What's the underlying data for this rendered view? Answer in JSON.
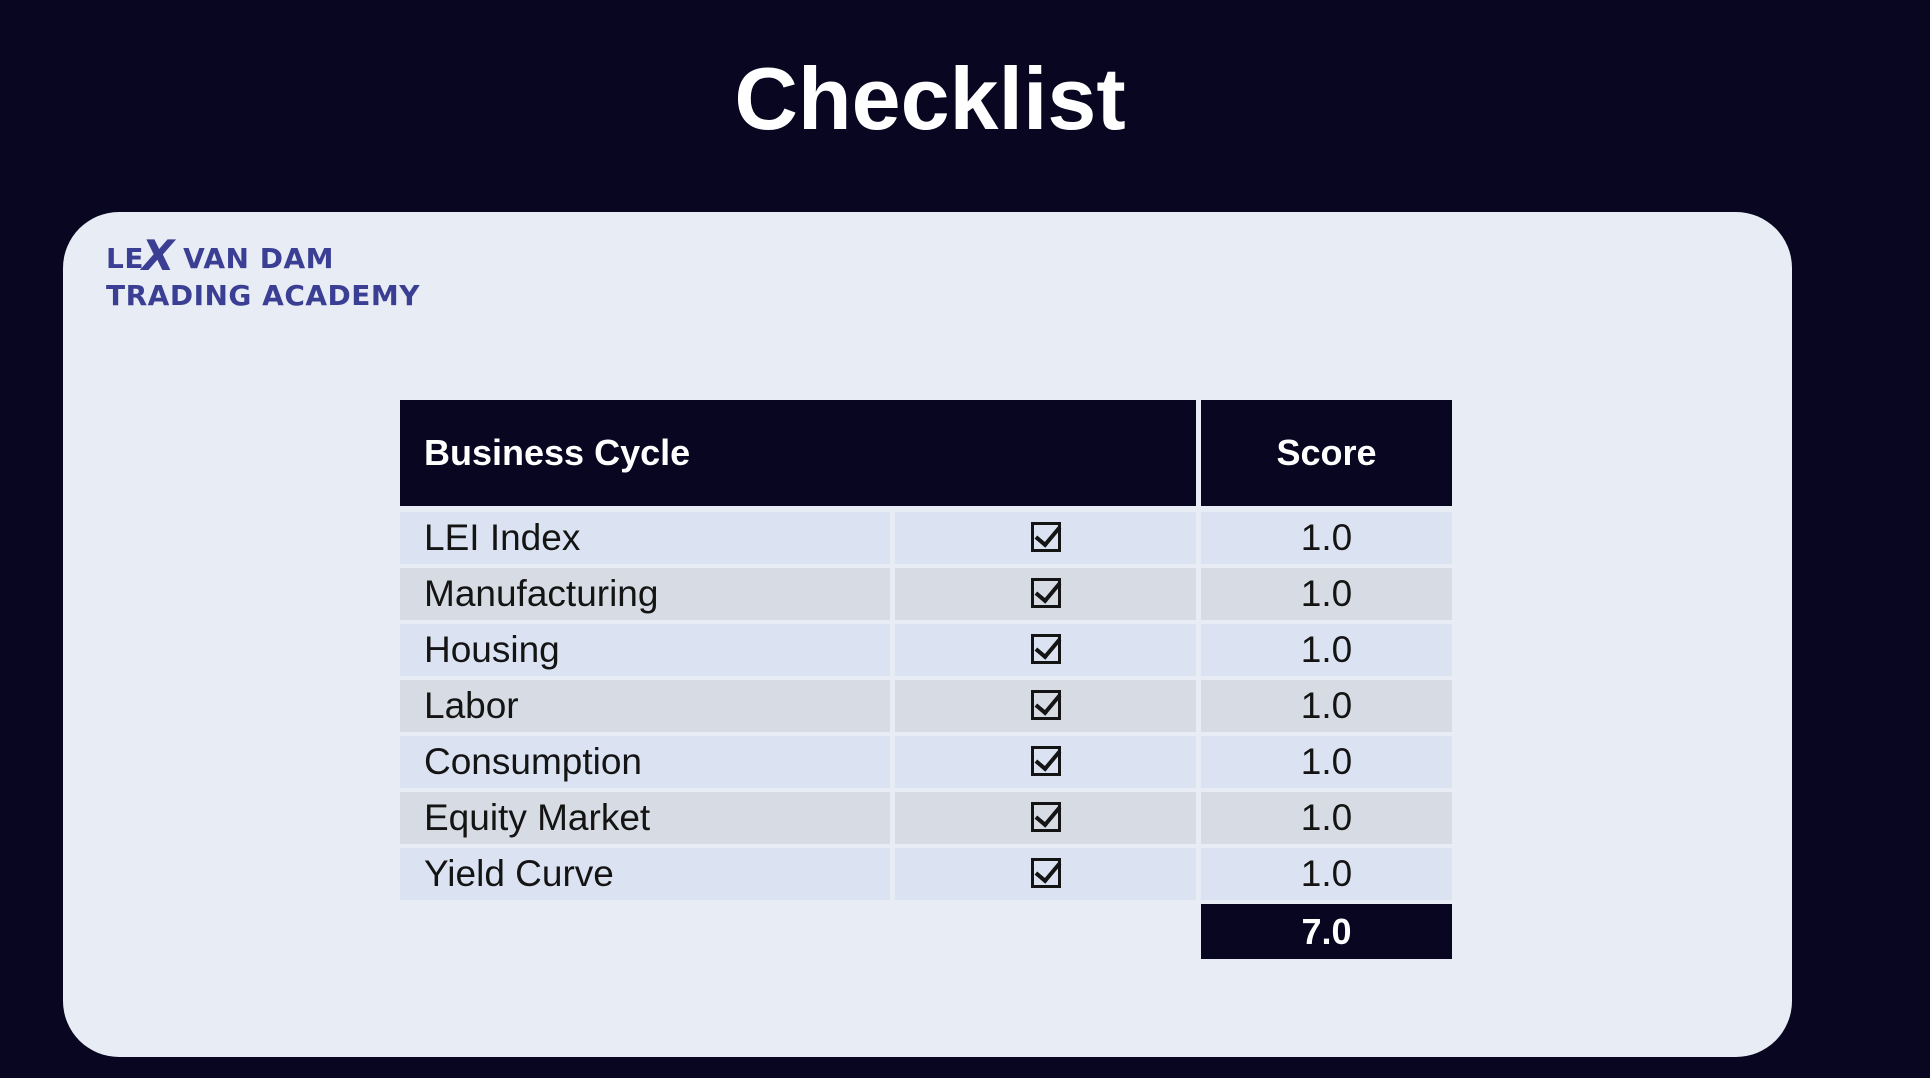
{
  "page": {
    "title": "Checklist"
  },
  "logo": {
    "line1_pre": "LE",
    "line1_x": "X",
    "line1_post": " VAN DAM",
    "line2": "TRADING ACADEMY",
    "color": "#3b3f93"
  },
  "table": {
    "header_label": "Business Cycle",
    "header_score": "Score",
    "rows": [
      {
        "label": "LEI Index",
        "checked": true,
        "score": "1.0"
      },
      {
        "label": "Manufacturing",
        "checked": true,
        "score": "1.0"
      },
      {
        "label": "Housing",
        "checked": true,
        "score": "1.0"
      },
      {
        "label": "Labor",
        "checked": true,
        "score": "1.0"
      },
      {
        "label": "Consumption",
        "checked": true,
        "score": "1.0"
      },
      {
        "label": "Equity Market",
        "checked": true,
        "score": "1.0"
      },
      {
        "label": "Yield Curve",
        "checked": true,
        "score": "1.0"
      }
    ],
    "total": "7.0"
  },
  "colors": {
    "background": "#080620",
    "card": "#e8ecf5",
    "row_odd": "#dbe3f2",
    "row_even": "#d7dbe3"
  }
}
